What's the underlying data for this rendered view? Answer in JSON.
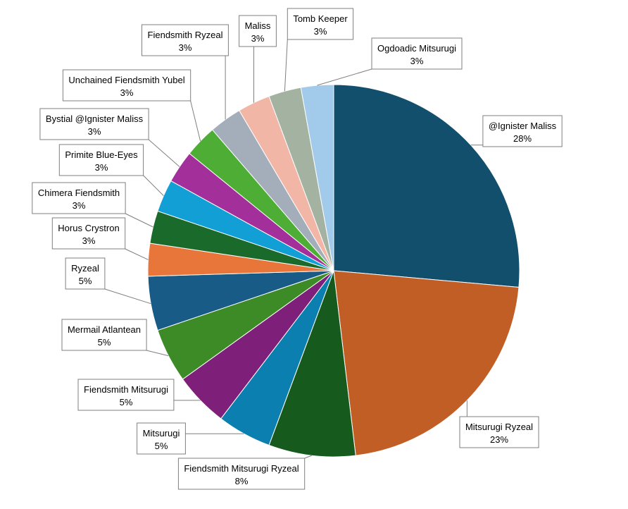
{
  "chart_data": {
    "type": "pie",
    "title": "",
    "start": "12 o'clock",
    "direction": "clockwise",
    "legend": "none",
    "labels_position": "outside callouts with leader lines",
    "slices": [
      {
        "label": "@Ignister Maliss",
        "value": 28,
        "display": "28%",
        "color": "#124F6D"
      },
      {
        "label": "Mitsurugi Ryzeal",
        "value": 23,
        "display": "23%",
        "color": "#C15E26"
      },
      {
        "label": "Fiendsmith Mitsurugi Ryzeal",
        "value": 8,
        "display": "8%",
        "color": "#175A1E"
      },
      {
        "label": "Mitsurugi",
        "value": 5,
        "display": "5%",
        "color": "#0B7FAF"
      },
      {
        "label": "Fiendsmith Mitsurugi",
        "value": 5,
        "display": "5%",
        "color": "#7E2079"
      },
      {
        "label": "Mermail Atlantean",
        "value": 5,
        "display": "5%",
        "color": "#3D8B26"
      },
      {
        "label": "Ryzeal",
        "value": 5,
        "display": "5%",
        "color": "#175B86"
      },
      {
        "label": "Horus Crystron",
        "value": 3,
        "display": "3%",
        "color": "#E8763A"
      },
      {
        "label": "Chimera Fiendsmith",
        "value": 3,
        "display": "3%",
        "color": "#1A6A2C"
      },
      {
        "label": "Primite Blue-Eyes",
        "value": 3,
        "display": "3%",
        "color": "#119FD6"
      },
      {
        "label": "Bystial @Ignister Maliss",
        "value": 3,
        "display": "3%",
        "color": "#A3309A"
      },
      {
        "label": "Unchained Fiendsmith Yubel",
        "value": 3,
        "display": "3%",
        "color": "#4EAD35"
      },
      {
        "label": "Fiendsmith Ryzeal",
        "value": 3,
        "display": "3%",
        "color": "#A4AEBA"
      },
      {
        "label": "Maliss",
        "value": 3,
        "display": "3%",
        "color": "#F2B6A7"
      },
      {
        "label": "Tomb Keeper",
        "value": 3,
        "display": "3%",
        "color": "#A3B2A1"
      },
      {
        "label": "Ogdoadic Mitsurugi",
        "value": 3,
        "display": "3%",
        "color": "#A2CAEA"
      }
    ]
  }
}
